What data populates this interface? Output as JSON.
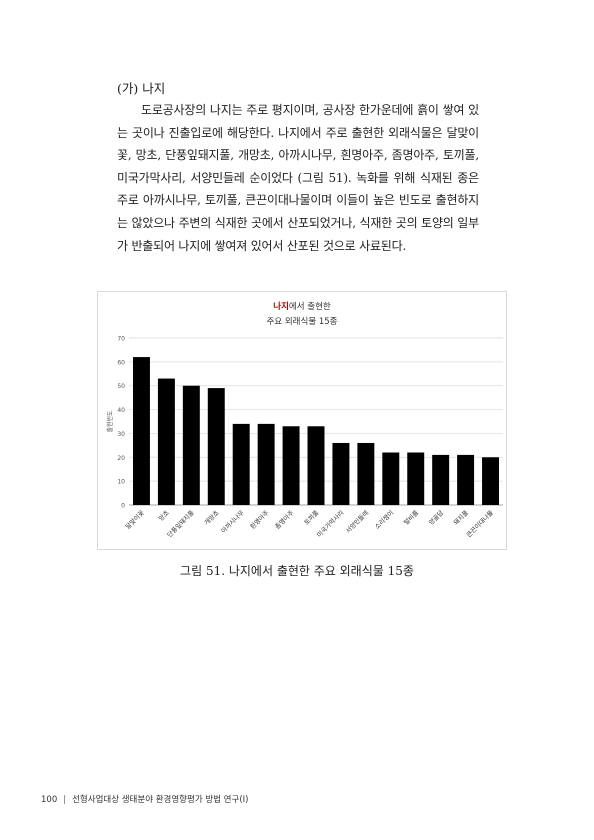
{
  "section": {
    "heading": "(가) 나지",
    "paragraph": "도로공사장의 나지는 주로 평지이며, 공사장 한가운데에 흙이 쌓여 있는 곳이나 진출입로에 해당한다. 나지에서 주로 출현한 외래식물은 달맞이꽃, 망초, 단풍잎돼지풀, 개망초, 아까시나무, 흰명아주, 좀명아주, 토끼풀, 미국가막사리, 서양민들레 순이었다 (그림 51). 녹화를 위해 식재된 종은 주로 아까시나무, 토끼풀, 큰끈이대나물이며 이들이 높은 빈도로 출현하지는 않았으나 주변의 식재한 곳에서 산포되었거나, 식재한 곳의 토양의 일부가 반출되어 나지에 쌓여져 있어서 산포된 것으로 사료된다."
  },
  "chart_title": {
    "highlight": "나지",
    "line1_rest": "에서 출현한",
    "line2": "주요 외래식물 15종"
  },
  "caption": "그림 51. 나지에서 출현한 주요 외래식물 15종",
  "footer": {
    "page_number": "100",
    "separator": "|",
    "text": "선형사업대상 생태분야 환경영향평가 방법 연구(Ⅰ)"
  },
  "colors": {
    "bar": "#000000",
    "highlight": "#c00000",
    "gridline": "#d9d9d9"
  },
  "chart_data": {
    "type": "bar",
    "title": "나지에서 출현한 주요 외래식물 15종",
    "xlabel": "",
    "ylabel": "출현빈도",
    "ylim": [
      0,
      70
    ],
    "yticks": [
      0,
      10,
      20,
      30,
      40,
      50,
      60,
      70
    ],
    "grid": true,
    "legend": "none",
    "categories": [
      "달맞이꽃",
      "망초",
      "단풍잎돼지풀",
      "개망초",
      "아까시나무",
      "흰명아주",
      "좀명아주",
      "토끼풀",
      "미국가막사리",
      "서양민들레",
      "소리쟁이",
      "털비름",
      "양골담",
      "돼지풀",
      "큰끈이대나물"
    ],
    "values": [
      62,
      53,
      50,
      49,
      34,
      34,
      33,
      33,
      26,
      26,
      22,
      22,
      21,
      21,
      20
    ]
  }
}
